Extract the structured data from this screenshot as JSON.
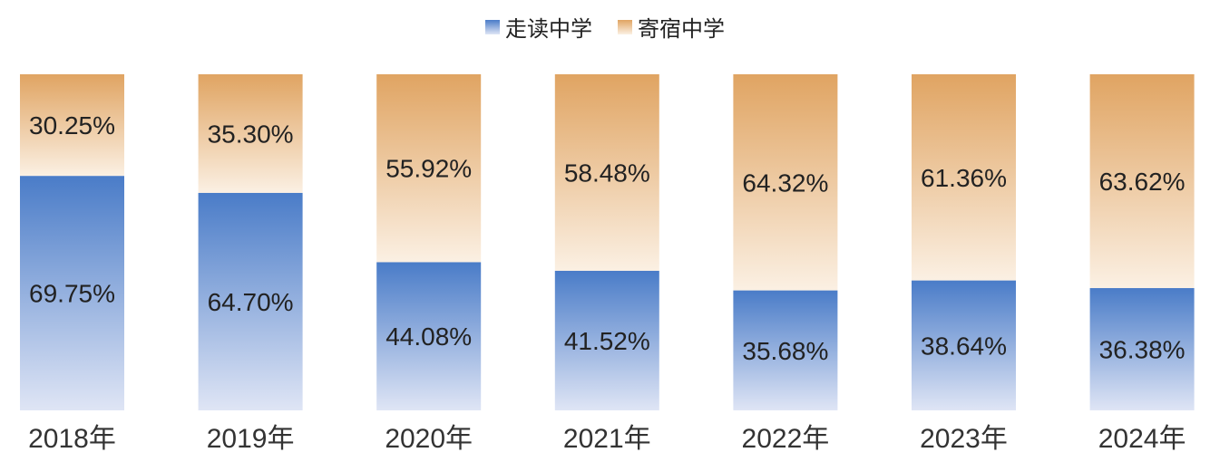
{
  "chart_data": {
    "type": "bar",
    "stacked": true,
    "percent": true,
    "title": "",
    "xlabel": "",
    "ylabel": "",
    "ylim": [
      0,
      100
    ],
    "grid": false,
    "legend_position": "top-center",
    "categories": [
      "2018年",
      "2019年",
      "2020年",
      "2021年",
      "2022年",
      "2023年",
      "2024年"
    ],
    "series": [
      {
        "name": "走读中学",
        "values": [
          69.75,
          64.7,
          44.08,
          41.52,
          35.68,
          38.64,
          36.38
        ],
        "labels": [
          "69.75%",
          "64.70%",
          "44.08%",
          "41.52%",
          "35.68%",
          "38.64%",
          "36.38%"
        ],
        "color_top": "#4a7cc8",
        "color_bottom": "#dfe5f5"
      },
      {
        "name": "寄宿中学",
        "values": [
          30.25,
          35.3,
          55.92,
          58.48,
          64.32,
          61.36,
          63.62
        ],
        "labels": [
          "30.25%",
          "35.30%",
          "55.92%",
          "58.48%",
          "64.32%",
          "61.36%",
          "63.62%"
        ],
        "color_top": "#e0a462",
        "color_bottom": "#fbf0e3"
      }
    ]
  }
}
